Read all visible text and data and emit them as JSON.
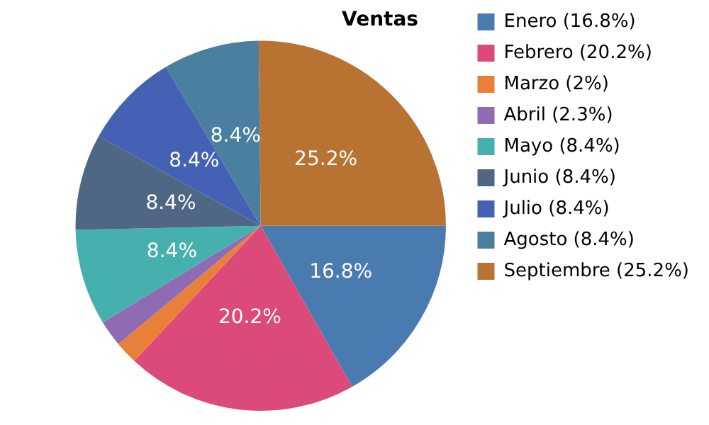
{
  "chart_data": {
    "type": "pie",
    "title": "Ventas",
    "categories": [
      "Enero (16.8%)",
      "Febrero (20.2%)",
      "Marzo (2%)",
      "Abril (2.3%)",
      "Mayo (8.4%)",
      "Junio (8.4%)",
      "Julio (8.4%)",
      "Agosto (8.4%)",
      "Septiembre (25.2%)"
    ],
    "values": [
      16.8,
      20.2,
      2,
      2.3,
      8.4,
      8.4,
      8.4,
      8.4,
      25.2
    ],
    "colors": [
      "#4a7bb0",
      "#dc4a7a",
      "#e8803a",
      "#8e6bb3",
      "#45b0ad",
      "#4f6785",
      "#4461b3",
      "#4a7fa0",
      "#b87333"
    ],
    "value_labels": [
      "16.8%",
      "20.2%",
      null,
      null,
      "8.4%",
      "8.4%",
      "8.4%",
      "8.4%",
      "25.2%"
    ],
    "legend": "right"
  }
}
